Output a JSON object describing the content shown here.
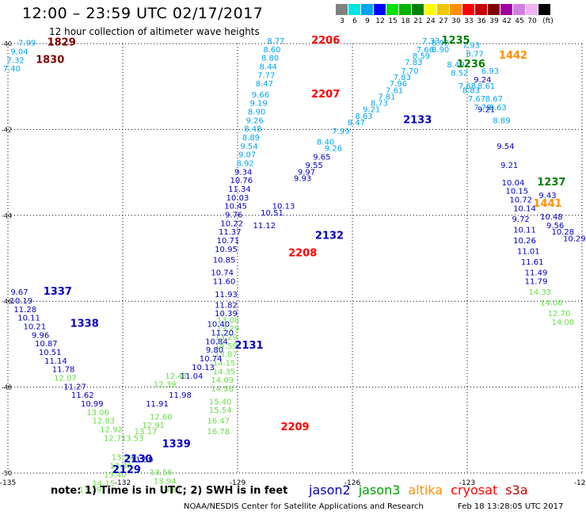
{
  "header": {
    "title": "12:00 – 23:59 UTC 02/17/2017",
    "subtitle": "12 hour collection of altimeter wave heights"
  },
  "legend": {
    "unit": "(ft)",
    "items": [
      {
        "label": "3",
        "color": "#808080"
      },
      {
        "label": "6",
        "color": "#00e5e5"
      },
      {
        "label": "9",
        "color": "#00a5f0"
      },
      {
        "label": "12",
        "color": "#0000ff"
      },
      {
        "label": "15",
        "color": "#00e100"
      },
      {
        "label": "18",
        "color": "#00b400"
      },
      {
        "label": "21",
        "color": "#008000"
      },
      {
        "label": "24",
        "color": "#ffff00"
      },
      {
        "label": "27",
        "color": "#f0c800"
      },
      {
        "label": "30",
        "color": "#ff9000"
      },
      {
        "label": "33",
        "color": "#ff0000"
      },
      {
        "label": "36",
        "color": "#c80000"
      },
      {
        "label": "39",
        "color": "#800000"
      },
      {
        "label": "42",
        "color": "#a000a0"
      },
      {
        "label": "45",
        "color": "#d080e0"
      },
      {
        "label": "70",
        "color": "#f0b4f0"
      },
      {
        "label": "",
        "color": "#000000"
      }
    ]
  },
  "map": {
    "lon_ticks": [
      "-135",
      "-132",
      "-129",
      "-126",
      "-123",
      "-120"
    ],
    "lat_ticks": [
      "-40",
      "-42",
      "-44",
      "-46",
      "-48",
      "-50"
    ],
    "lon_range": [
      -135,
      -120
    ],
    "lat_range": [
      -50,
      -40
    ]
  },
  "pass_labels": [
    {
      "text": "1829",
      "lon": -133.6,
      "lat": -40.05,
      "color": "#800000"
    },
    {
      "text": "1830",
      "lon": -133.9,
      "lat": -40.45,
      "color": "#800000"
    },
    {
      "text": "2206",
      "lon": -126.7,
      "lat": -40.0,
      "color": "#ff0000"
    },
    {
      "text": "2207",
      "lon": -126.7,
      "lat": -41.25,
      "color": "#ff0000"
    },
    {
      "text": "1235",
      "lon": -123.3,
      "lat": -40.0,
      "color": "#008000"
    },
    {
      "text": "1236",
      "lon": -122.9,
      "lat": -40.55,
      "color": "#008000"
    },
    {
      "text": "1442",
      "lon": -121.8,
      "lat": -40.35,
      "color": "#ff9000"
    },
    {
      "text": "2133",
      "lon": -124.3,
      "lat": -41.85,
      "color": "#0000c0"
    },
    {
      "text": "1237",
      "lon": -120.8,
      "lat": -43.3,
      "color": "#008000"
    },
    {
      "text": "1441",
      "lon": -120.9,
      "lat": -43.8,
      "color": "#ff9000"
    },
    {
      "text": "2132",
      "lon": -126.6,
      "lat": -44.55,
      "color": "#0000c0"
    },
    {
      "text": "2208",
      "lon": -127.3,
      "lat": -44.95,
      "color": "#ff0000"
    },
    {
      "text": "1337",
      "lon": -133.7,
      "lat": -45.85,
      "color": "#0000c0"
    },
    {
      "text": "1338",
      "lon": -133.0,
      "lat": -46.6,
      "color": "#0000c0"
    },
    {
      "text": "2131",
      "lon": -128.7,
      "lat": -47.1,
      "color": "#0000c0"
    },
    {
      "text": "2209",
      "lon": -127.5,
      "lat": -49.0,
      "color": "#ff0000"
    },
    {
      "text": "1339",
      "lon": -130.6,
      "lat": -49.4,
      "color": "#0000c0"
    },
    {
      "text": "2130",
      "lon": -131.6,
      "lat": -49.75,
      "color": "#0000c0"
    },
    {
      "text": "2129",
      "lon": -131.9,
      "lat": -50.0,
      "color": "#0000c0"
    }
  ],
  "tracks": [
    {
      "name": "1829",
      "color": "#00a5f0",
      "points": [
        [
          "7.99",
          -134.5,
          -40.05
        ],
        [
          "9.04",
          -134.7,
          -40.25
        ],
        [
          "7.32",
          -134.8,
          -40.45
        ],
        [
          "7.40",
          -134.9,
          -40.65
        ]
      ]
    },
    {
      "name": "2206",
      "color": "#00a5f0",
      "points": [
        [
          "8.77",
          -128.0,
          -40.0
        ],
        [
          "8.60",
          -128.1,
          -40.2
        ],
        [
          "8.80",
          -128.15,
          -40.4
        ],
        [
          "8.44",
          -128.2,
          -40.6
        ],
        [
          "7.77",
          -128.25,
          -40.8
        ],
        [
          "8.47",
          -128.3,
          -41.0
        ],
        [
          "9.66",
          -128.4,
          -41.25
        ],
        [
          "9.19",
          -128.45,
          -41.45
        ],
        [
          "8.90",
          -128.5,
          -41.65
        ],
        [
          "9.26",
          -128.55,
          -41.85
        ],
        [
          "8.48",
          -128.6,
          -42.05
        ],
        [
          "8.89",
          -128.65,
          -42.25
        ],
        [
          "9.54",
          -128.7,
          -42.45
        ],
        [
          "9.07",
          -128.75,
          -42.65
        ],
        [
          "8.92",
          -128.8,
          -42.85
        ]
      ]
    },
    {
      "name": "2207",
      "color": "#0000c0",
      "points": [
        [
          "9.34",
          -128.85,
          -43.05
        ],
        [
          "10.76",
          -128.9,
          -43.25
        ],
        [
          "11.34",
          -128.95,
          -43.45
        ],
        [
          "10.03",
          -129.0,
          -43.65
        ],
        [
          "10.45",
          -129.05,
          -43.85
        ],
        [
          "9.76",
          -129.1,
          -44.05
        ],
        [
          "10.22",
          -129.15,
          -44.25
        ],
        [
          "11.37",
          -129.2,
          -44.45
        ],
        [
          "10.71",
          -129.25,
          -44.65
        ],
        [
          "10.95",
          -129.3,
          -44.85
        ],
        [
          "10.85",
          -129.35,
          -45.1
        ],
        [
          "10.74",
          -129.4,
          -45.4
        ],
        [
          "11.60",
          -129.35,
          -45.6
        ],
        [
          "11.93",
          -129.3,
          -45.9
        ],
        [
          "11.82",
          -129.3,
          -46.15
        ]
      ]
    },
    {
      "name": "2209",
      "color": "#66dd44",
      "points": [
        [
          "13.08",
          -129.25,
          -46.5
        ],
        [
          "13.29",
          -129.25,
          -46.7
        ],
        [
          "13.29",
          -129.3,
          -46.9
        ],
        [
          "14.59",
          -129.3,
          -47.1
        ],
        [
          "13.87",
          -129.3,
          -47.3
        ],
        [
          "14.15",
          -129.35,
          -47.5
        ],
        [
          "14.35",
          -129.35,
          -47.7
        ],
        [
          "14.09",
          -129.4,
          -47.9
        ],
        [
          "14.58",
          -129.4,
          -48.1
        ],
        [
          "15.40",
          -129.45,
          -48.4
        ],
        [
          "15.54",
          -129.45,
          -48.6
        ],
        [
          "16.47",
          -129.5,
          -48.85
        ],
        [
          "16.78",
          -129.5,
          -49.1
        ]
      ]
    },
    {
      "name": "2132",
      "color": "#0000c0",
      "points": [
        [
          "9.93",
          -127.3,
          -43.2
        ],
        [
          "9.55",
          -127.0,
          -42.9
        ],
        [
          "9.97",
          -127.2,
          -43.05
        ],
        [
          "9.65",
          -126.8,
          -42.7
        ],
        [
          "10.51",
          -128.1,
          -44.0
        ],
        [
          "10.13",
          -127.8,
          -43.85
        ],
        [
          "11.12",
          -128.3,
          -44.3
        ]
      ]
    },
    {
      "name": "2133",
      "color": "#00a5f0",
      "points": [
        [
          "9.26",
          -126.5,
          -42.5
        ],
        [
          "8.40",
          -126.7,
          -42.35
        ],
        [
          "7.99",
          -126.3,
          -42.1
        ],
        [
          "8.47",
          -125.9,
          -41.9
        ],
        [
          "8.63",
          -125.7,
          -41.75
        ],
        [
          "9.21",
          -125.5,
          -41.6
        ],
        [
          "8.73",
          -125.3,
          -41.45
        ],
        [
          "7.81",
          -125.1,
          -41.3
        ],
        [
          "7.61",
          -124.9,
          -41.15
        ],
        [
          "7.96",
          -124.8,
          -41.0
        ],
        [
          "7.83",
          -124.7,
          -40.85
        ],
        [
          "7.70",
          -124.5,
          -40.7
        ],
        [
          "7.83",
          -124.4,
          -40.5
        ],
        [
          "8.59",
          -124.2,
          -40.35
        ],
        [
          "7.66",
          -124.1,
          -40.2
        ],
        [
          "7.33",
          -123.95,
          -40.0
        ]
      ]
    },
    {
      "name": "1235",
      "color": "#00a5f0",
      "points": [
        [
          "8.92",
          -123.7,
          -40.05
        ],
        [
          "8.90",
          -123.7,
          -40.2
        ],
        [
          "8.49",
          -123.3,
          -40.55
        ],
        [
          "8.52",
          -123.2,
          -40.75
        ],
        [
          "7.68",
          -123.0,
          -41.05
        ],
        [
          "8.83",
          -122.9,
          -41.15
        ],
        [
          "7.67",
          -122.75,
          -41.35
        ],
        [
          "7.78",
          -122.6,
          -41.55
        ]
      ]
    },
    {
      "name": "1236",
      "color": "#00a5f0",
      "points": [
        [
          "7.93",
          -122.9,
          -40.1
        ],
        [
          "8.77",
          -122.8,
          -40.3
        ],
        [
          "6.93",
          -122.4,
          -40.7
        ],
        [
          "8.61",
          -122.5,
          -41.05
        ],
        [
          "8.67",
          -122.3,
          -41.35
        ],
        [
          "8.63",
          -122.2,
          -41.55
        ],
        [
          "8.89",
          -122.1,
          -41.85
        ]
      ]
    },
    {
      "name": "1237",
      "color": "#0000c0",
      "points": [
        [
          "9.24",
          -122.6,
          -40.9
        ],
        [
          "9.21",
          -122.5,
          -41.6
        ],
        [
          "9.54",
          -122.0,
          -42.45
        ],
        [
          "9.21",
          -121.9,
          -42.9
        ],
        [
          "10.04",
          -121.8,
          -43.3
        ],
        [
          "10.15",
          -121.7,
          -43.5
        ],
        [
          "10.72",
          -121.6,
          -43.7
        ],
        [
          "10.14",
          -121.5,
          -43.9
        ],
        [
          "9.72",
          -121.6,
          -44.15
        ],
        [
          "10.11",
          -121.5,
          -44.4
        ],
        [
          "10.26",
          -121.5,
          -44.65
        ],
        [
          "11.01",
          -121.4,
          -44.9
        ],
        [
          "11.61",
          -121.3,
          -45.15
        ],
        [
          "11.49",
          -121.2,
          -45.4
        ],
        [
          "11.79",
          -121.2,
          -45.6
        ]
      ]
    },
    {
      "name": "1237b",
      "color": "#66dd44",
      "points": [
        [
          "14.33",
          -121.1,
          -45.85
        ],
        [
          "14.00",
          -120.8,
          -46.1
        ],
        [
          "12.70",
          -120.6,
          -46.35
        ],
        [
          "14.00",
          -120.5,
          -46.55
        ]
      ]
    },
    {
      "name": "1441",
      "color": "#0000c0",
      "points": [
        [
          "9.43",
          -120.9,
          -43.6
        ],
        [
          "10.48",
          -120.8,
          -44.1
        ],
        [
          "9.56",
          -120.7,
          -44.3
        ],
        [
          "10.28",
          -120.5,
          -44.45
        ],
        [
          "10.29",
          -120.2,
          -44.6
        ]
      ]
    },
    {
      "name": "1337",
      "color": "#0000c0",
      "points": [
        [
          "9.67",
          -134.7,
          -45.85
        ],
        [
          "10.19",
          -134.65,
          -46.05
        ],
        [
          "11.28",
          -134.55,
          -46.25
        ],
        [
          "10.11",
          -134.45,
          -46.45
        ],
        [
          "10.21",
          -134.3,
          -46.65
        ],
        [
          "9.96",
          -134.15,
          -46.85
        ],
        [
          "10.87",
          -134.0,
          -47.05
        ],
        [
          "10.51",
          -133.9,
          -47.25
        ],
        [
          "11.14",
          -133.75,
          -47.45
        ],
        [
          "11.78",
          -133.55,
          -47.65
        ],
        [
          "11.27",
          -133.25,
          -48.05
        ],
        [
          "11.62",
          -133.05,
          -48.25
        ],
        [
          "10.99",
          -132.8,
          -48.45
        ]
      ]
    },
    {
      "name": "1337b",
      "color": "#66dd44",
      "points": [
        [
          "12.07",
          -133.5,
          -47.85
        ],
        [
          "13.06",
          -132.65,
          -48.65
        ],
        [
          "12.83",
          -132.5,
          -48.85
        ],
        [
          "12.92",
          -132.3,
          -49.05
        ],
        [
          "12.71",
          -132.2,
          -49.25
        ],
        [
          "13.53",
          -131.75,
          -49.25
        ],
        [
          "13.50",
          -132.0,
          -49.7
        ],
        [
          "13.90",
          -132.05,
          -49.9
        ],
        [
          "13.40",
          -132.2,
          -50.1
        ],
        [
          "14.15",
          -132.5,
          -50.3
        ],
        [
          "13.79",
          -132.85,
          -50.45
        ]
      ]
    },
    {
      "name": "2130",
      "color": "#66dd44",
      "points": [
        [
          "13.56",
          -131.0,
          -50.05
        ],
        [
          "13.94",
          -130.9,
          -50.25
        ],
        [
          "13.61",
          -130.75,
          -50.45
        ],
        [
          "12.91",
          -131.2,
          -48.95
        ],
        [
          "12.60",
          -131.0,
          -48.75
        ],
        [
          "13.17",
          -131.4,
          -49.1
        ]
      ]
    },
    {
      "name": "2131",
      "color": "#0000c0",
      "points": [
        [
          "11.59",
          -131.5,
          -49.75
        ],
        [
          "11.91",
          -131.1,
          -48.45
        ],
        [
          "11.98",
          -130.5,
          -48.25
        ],
        [
          "11.04",
          -130.2,
          -47.8
        ],
        [
          "10.13",
          -129.9,
          -47.6
        ],
        [
          "10.74",
          -129.7,
          -47.4
        ],
        [
          "9.80",
          -129.6,
          -47.2
        ],
        [
          "10.84",
          -129.55,
          -47.0
        ],
        [
          "11.20",
          -129.4,
          -46.8
        ],
        [
          "10.40",
          -129.5,
          -46.6
        ],
        [
          "10.39",
          -129.3,
          -46.35
        ]
      ]
    },
    {
      "name": "2131b",
      "color": "#66dd44",
      "points": [
        [
          "12.39",
          -130.9,
          -48.0
        ],
        [
          "12.41",
          -130.6,
          -47.8
        ]
      ]
    }
  ],
  "footer": {
    "note": "note: 1) Time is in UTC; 2) SWH is in feet",
    "satellites": [
      {
        "name": "jason2",
        "color": "#0000c0"
      },
      {
        "name": "jason3",
        "color": "#00a000"
      },
      {
        "name": "altika",
        "color": "#ff9000"
      },
      {
        "name": "cryosat",
        "color": "#ff0000"
      },
      {
        "name": "s3a",
        "color": "#c80000"
      }
    ],
    "credit": "NOAA/NESDIS Center for Satellite Applications and Research",
    "timestamp": "Feb 18 13:28:05 UTC 2017"
  }
}
